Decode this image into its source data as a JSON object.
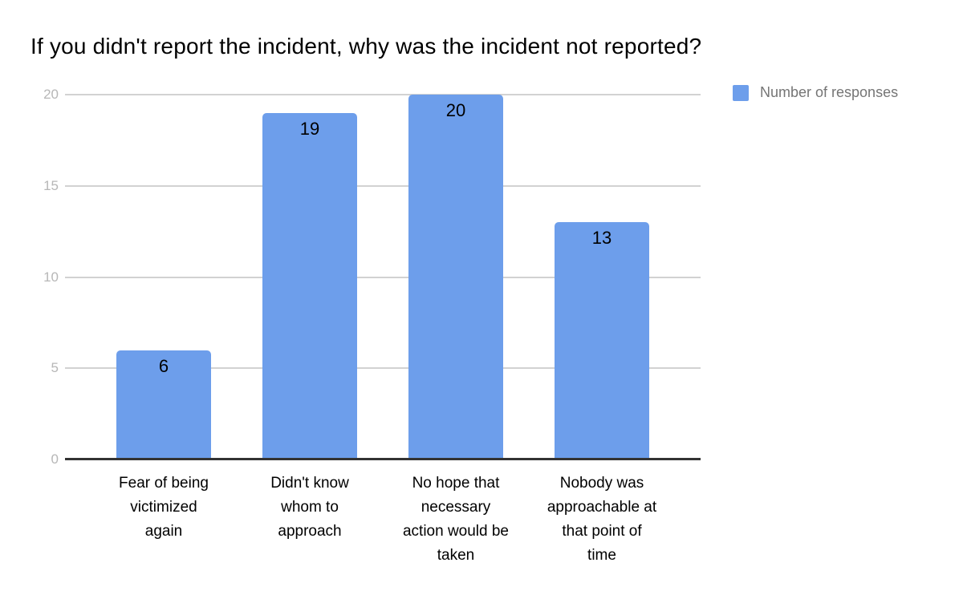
{
  "title": "If you didn't report the incident, why was the incident not reported?",
  "legend": {
    "label": "Number of responses"
  },
  "colors": {
    "bar": "#6d9eeb",
    "legend_text": "#757575",
    "y_tick_text": "#b7b7b7",
    "gridline": "#d2d2d2",
    "axis_baseline": "#333333",
    "title_text": "#000000",
    "background": "#ffffff"
  },
  "chart_data": {
    "type": "bar",
    "title": "If you didn't report the incident, why was the incident not reported?",
    "series": [
      {
        "name": "Number of responses",
        "values": [
          6,
          19,
          20,
          13
        ]
      }
    ],
    "categories": [
      "Fear of being victimized again",
      "Didn't know whom to approach",
      "No hope that necessary action would be taken",
      "Nobody was approachable at that point of time"
    ],
    "category_lines": [
      [
        "Fear of being",
        "victimized",
        "again"
      ],
      [
        "Didn't know",
        "whom to",
        "approach"
      ],
      [
        "No hope that",
        "necessary",
        "action would be",
        "taken"
      ],
      [
        "Nobody was",
        "approachable at",
        "that point of",
        "time"
      ]
    ],
    "value_labels": [
      "6",
      "19",
      "20",
      "13"
    ],
    "xlabel": "",
    "ylabel": "",
    "ylim": [
      0,
      20
    ],
    "y_ticks": [
      0,
      5,
      10,
      15,
      20
    ],
    "grid": true,
    "legend_position": "top-right",
    "bar_color": "#6d9eeb"
  }
}
